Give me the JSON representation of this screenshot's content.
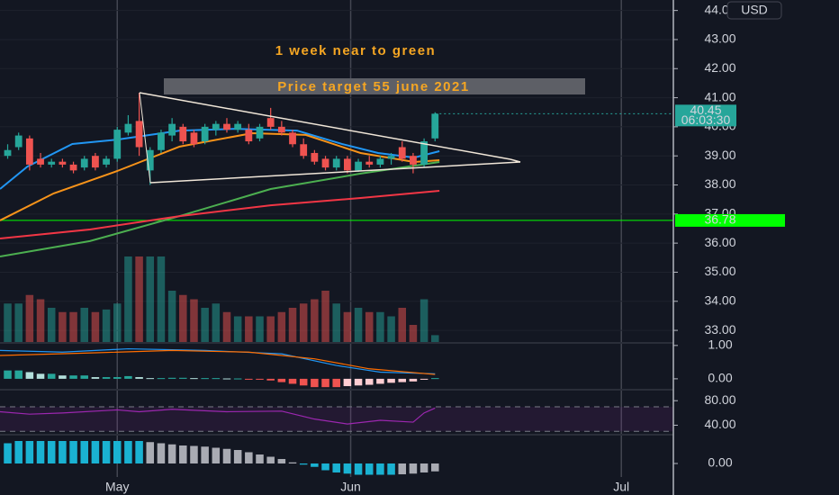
{
  "chart_data": {
    "type": "candlestick",
    "annotations": [
      "1 week near to green",
      "Price target 55 june 2021"
    ],
    "currency": "USD",
    "xlim": [
      -0.7,
      60.5
    ],
    "xticks": [
      {
        "value": 10,
        "label": "May"
      },
      {
        "value": 31.3,
        "label": "Jun"
      },
      {
        "value": 56,
        "label": "Jul"
      }
    ],
    "ylim": [
      32.6,
      44.36
    ],
    "yticks": [
      {
        "value": 33,
        "label": "33.00"
      },
      {
        "value": 34,
        "label": "34.00"
      },
      {
        "value": 35,
        "label": "35.00"
      },
      {
        "value": 36,
        "label": "36.00"
      },
      {
        "value": 37,
        "label": "37.00"
      },
      {
        "value": 38,
        "label": "38.00"
      },
      {
        "value": 39,
        "label": "39.00"
      },
      {
        "value": 40,
        "label": "40.00"
      },
      {
        "value": 41,
        "label": "41.00"
      },
      {
        "value": 42,
        "label": "42.00"
      },
      {
        "value": 43,
        "label": "43.00"
      },
      {
        "value": 44,
        "label": "44.00"
      }
    ],
    "up_color": "#26a69a",
    "down_color": "#ef5350",
    "open": [
      39.0,
      39.3,
      39.6,
      38.9,
      38.7,
      38.8,
      38.7,
      38.6,
      39.0,
      38.7,
      38.9,
      39.8,
      40.2,
      38.5,
      39.2,
      39.7,
      40.0,
      39.8,
      39.5,
      39.9,
      40.1,
      39.9,
      39.9,
      39.6,
      40.3,
      40.0,
      39.8,
      39.4,
      39.1,
      38.9,
      38.6,
      38.9,
      38.5,
      38.8,
      38.7,
      38.9,
      39.3,
      39.0,
      38.7,
      39.6
    ],
    "high": [
      39.4,
      39.8,
      39.7,
      39.1,
      38.9,
      38.9,
      38.8,
      39.0,
      39.1,
      39.0,
      40.0,
      40.4,
      41.17,
      39.3,
      39.9,
      40.3,
      40.1,
      39.9,
      40.1,
      40.2,
      40.3,
      40.2,
      40.1,
      40.1,
      40.65,
      40.2,
      39.9,
      39.6,
      39.2,
      39.0,
      39.0,
      39.0,
      38.9,
      39.0,
      39.0,
      39.1,
      39.5,
      39.1,
      39.6,
      40.5
    ],
    "low": [
      38.9,
      39.2,
      38.5,
      38.6,
      38.6,
      38.6,
      38.4,
      38.5,
      38.5,
      38.6,
      38.8,
      39.7,
      39.0,
      38.0,
      39.1,
      39.5,
      39.4,
      39.3,
      39.4,
      39.7,
      39.8,
      39.8,
      39.4,
      39.5,
      39.9,
      39.7,
      39.3,
      38.9,
      38.7,
      38.5,
      38.5,
      38.4,
      38.45,
      38.6,
      38.6,
      38.7,
      38.8,
      38.4,
      38.6,
      39.5
    ],
    "close": [
      39.2,
      39.7,
      38.7,
      38.7,
      38.8,
      38.7,
      38.5,
      38.9,
      38.6,
      38.9,
      39.9,
      40.1,
      39.3,
      39.2,
      39.8,
      40.1,
      39.5,
      39.4,
      40.0,
      40.1,
      39.9,
      40.1,
      39.5,
      40.0,
      40.0,
      39.8,
      39.4,
      39.0,
      38.8,
      38.6,
      38.9,
      38.5,
      38.8,
      38.7,
      38.9,
      39.0,
      38.9,
      38.7,
      39.5,
      40.45
    ],
    "last_price": 40.45,
    "countdown": "06:03:30",
    "hline": {
      "value": 36.78,
      "color": "#00ff00"
    },
    "moving_averages": [
      {
        "color": "#2196f3",
        "x": [
          -0.7,
          1.8,
          5.9,
          10,
          15.7,
          20.7,
          26.4,
          30.5,
          33.8,
          37.1,
          39.4
        ],
        "values": [
          37.86,
          38.63,
          39.41,
          39.56,
          39.87,
          39.93,
          39.87,
          39.41,
          39.1,
          38.94,
          39.16
        ]
      },
      {
        "color": "#f7931a",
        "x": [
          -0.7,
          4.2,
          10,
          15.7,
          22.3,
          27.2,
          32.2,
          37.1,
          39.4
        ],
        "values": [
          36.78,
          37.71,
          38.48,
          39.32,
          39.78,
          39.72,
          39.1,
          38.79,
          38.85
        ]
      },
      {
        "color": "#4caf50",
        "x": [
          -0.7,
          7.5,
          15.7,
          24,
          32.2,
          39.4
        ],
        "values": [
          35.54,
          36.07,
          36.93,
          37.86,
          38.39,
          38.79
        ]
      },
      {
        "color": "#f23645",
        "x": [
          -0.7,
          7.5,
          15.7,
          24,
          32.2,
          39.4
        ],
        "values": [
          36.16,
          36.47,
          36.93,
          37.3,
          37.55,
          37.8
        ]
      }
    ],
    "volume": {
      "values": [
        45,
        45,
        55,
        50,
        40,
        35,
        35,
        40,
        35,
        38,
        45,
        100,
        100,
        100,
        100,
        60,
        55,
        50,
        40,
        45,
        35,
        30,
        30,
        30,
        30,
        35,
        40,
        45,
        50,
        60,
        45,
        35,
        40,
        35,
        35,
        30,
        40,
        20,
        50,
        8
      ]
    },
    "macd": {
      "ylim": [
        -0.3,
        1.05
      ],
      "yticks": [
        {
          "value": 0,
          "label": "0.00"
        },
        {
          "value": 1,
          "label": "1.00"
        }
      ],
      "histogram": [
        0.25,
        0.25,
        0.2,
        0.15,
        0.15,
        0.1,
        0.1,
        0.1,
        0.05,
        0.05,
        0.05,
        0.08,
        0.05,
        0.02,
        0.02,
        0.03,
        0.03,
        0.02,
        0.02,
        0.02,
        0.01,
        0.01,
        -0.01,
        -0.02,
        -0.05,
        -0.1,
        -0.15,
        -0.2,
        -0.25,
        -0.25,
        -0.25,
        -0.22,
        -0.2,
        -0.18,
        -0.15,
        -0.12,
        -0.1,
        -0.08,
        -0.02,
        0.02
      ],
      "lines": [
        {
          "color": "#2196f3",
          "x": [
            -0.7,
            5,
            11,
            18,
            25,
            30,
            34,
            39
          ],
          "values": [
            0.85,
            0.8,
            0.9,
            0.85,
            0.75,
            0.4,
            0.2,
            0.15
          ]
        },
        {
          "color": "#ff6d00",
          "x": [
            -0.7,
            8,
            15,
            22,
            28,
            33,
            39
          ],
          "values": [
            0.7,
            0.78,
            0.85,
            0.8,
            0.6,
            0.3,
            0.13
          ]
        }
      ]
    },
    "rsi": {
      "ylim": [
        26,
        95
      ],
      "yticks": [
        {
          "value": 40,
          "label": "40.00"
        },
        {
          "value": 80,
          "label": "80.00"
        }
      ],
      "band": [
        30,
        70
      ],
      "color": "#9c27b0",
      "x": [
        -0.7,
        2,
        5,
        10,
        12,
        15,
        20,
        25,
        28,
        31,
        34,
        37,
        38,
        39
      ],
      "values": [
        62,
        58,
        60,
        65,
        62,
        66,
        62,
        63,
        50,
        42,
        48,
        45,
        60,
        68
      ]
    },
    "oscillator": {
      "ylim": [
        -0.8,
        1.2
      ],
      "yticks": [
        {
          "value": 0,
          "label": "0.00"
        }
      ],
      "values": [
        0.9,
        1.0,
        1.0,
        1.0,
        1.0,
        1.0,
        1.0,
        1.0,
        1.0,
        1.0,
        1.0,
        1.0,
        1.0,
        0.95,
        0.9,
        0.85,
        0.8,
        0.78,
        0.75,
        0.7,
        0.65,
        0.6,
        0.5,
        0.4,
        0.3,
        0.2,
        0.05,
        -0.05,
        -0.15,
        -0.3,
        -0.4,
        -0.45,
        -0.5,
        -0.5,
        -0.5,
        -0.5,
        -0.48,
        -0.45,
        -0.4,
        -0.35
      ]
    }
  }
}
